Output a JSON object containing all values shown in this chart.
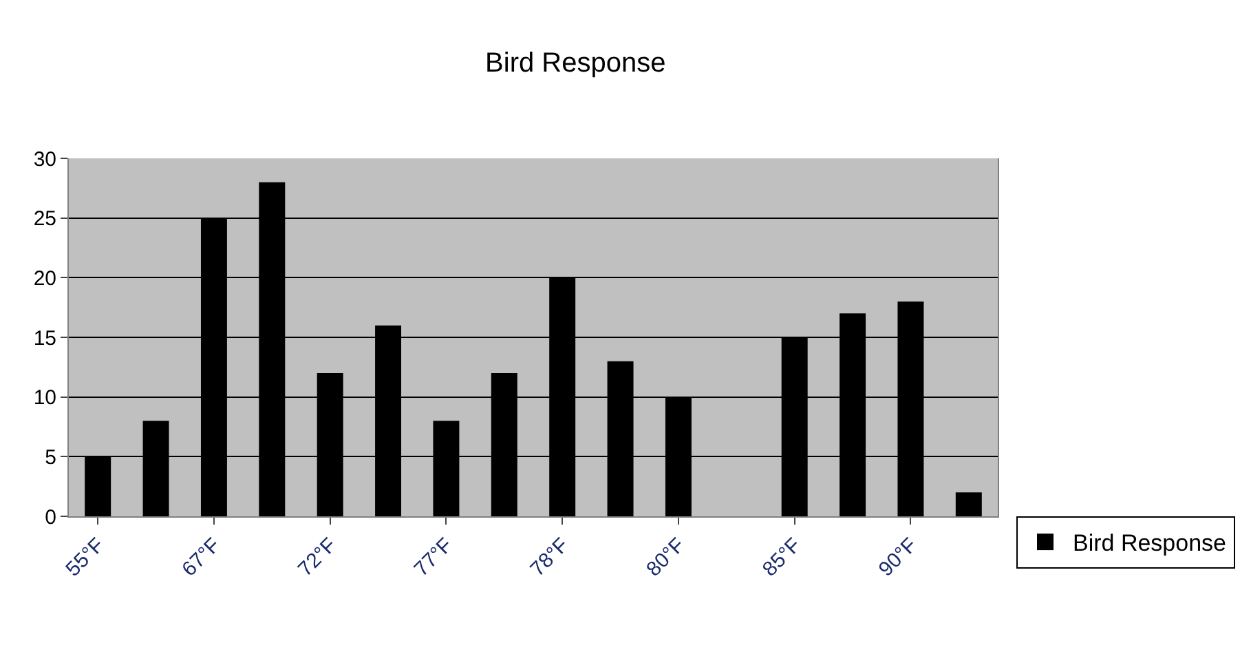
{
  "chart_data": {
    "type": "bar",
    "title": "Bird Response",
    "categories": [
      "55°F",
      null,
      "67°F",
      null,
      "72°F",
      null,
      "77°F",
      null,
      "78°F",
      null,
      "80°F",
      null,
      "85°F",
      null,
      "90°F",
      null
    ],
    "series": [
      {
        "name": "Bird Response",
        "color": "#000000",
        "values": [
          5,
          8,
          25,
          28,
          12,
          16,
          8,
          12,
          20,
          13,
          10,
          null,
          15,
          17,
          18,
          2
        ]
      }
    ],
    "ylim": [
      0,
      30
    ],
    "yticks": [
      0,
      5,
      10,
      15,
      20,
      25,
      30
    ],
    "grid": "y",
    "legend": "right"
  }
}
